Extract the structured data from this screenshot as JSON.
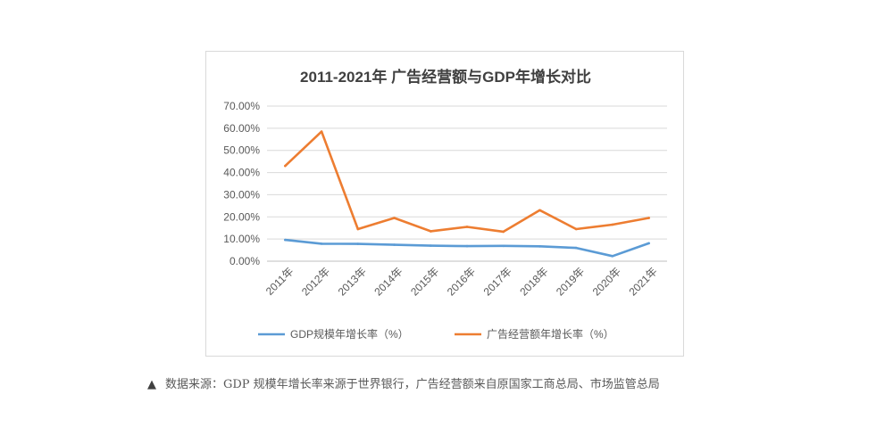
{
  "chart_data": {
    "type": "line",
    "title": "2011-2021年 广告经营额与GDP年增长对比",
    "categories": [
      "2011年",
      "2012年",
      "2013年",
      "2014年",
      "2015年",
      "2016年",
      "2017年",
      "2018年",
      "2019年",
      "2020年",
      "2021年"
    ],
    "y_ticks": [
      "0.00%",
      "10.00%",
      "20.00%",
      "30.00%",
      "40.00%",
      "50.00%",
      "60.00%",
      "70.00%"
    ],
    "ylim": [
      0,
      70
    ],
    "grid": true,
    "legend_position": "bottom",
    "series": [
      {
        "name": "GDP规模年增长率（%）",
        "color": "#5b9bd5",
        "values": [
          9.6,
          7.9,
          7.8,
          7.4,
          7.0,
          6.8,
          6.9,
          6.7,
          6.0,
          2.3,
          8.1
        ]
      },
      {
        "name": "广告经营额年增长率（%）",
        "color": "#ed7d31",
        "values": [
          43.0,
          58.5,
          14.5,
          19.5,
          13.5,
          15.5,
          13.3,
          23.0,
          14.5,
          16.5,
          19.5
        ]
      }
    ]
  },
  "caption": {
    "marker": "▲",
    "text": "数据来源：GDP 规模年增长率来源于世界银行，广告经营额来自原国家工商总局、市场监管总局"
  }
}
